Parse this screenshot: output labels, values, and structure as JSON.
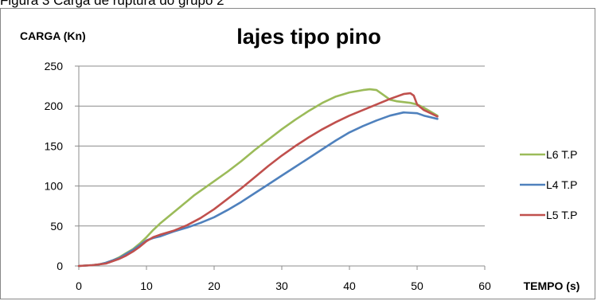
{
  "caption": "Figura 3 Carga de ruptura do grupo 2",
  "chart_data": {
    "type": "line",
    "title": "lajes tipo pino",
    "ylabel": "CARGA (Kn)",
    "xlabel": "TEMPO (s)",
    "xlim": [
      0,
      60
    ],
    "ylim": [
      0,
      250
    ],
    "xticks": [
      0,
      10,
      20,
      30,
      40,
      50,
      60
    ],
    "yticks": [
      0,
      50,
      100,
      150,
      200,
      250
    ],
    "grid": "horizontal",
    "legend_position": "right",
    "series": [
      {
        "name": "L6 T.P",
        "color": "#9bbb59",
        "x": [
          0,
          2,
          3,
          4,
          5,
          6,
          7,
          8,
          9,
          10,
          11,
          12,
          13,
          14,
          15,
          16,
          17,
          18,
          19,
          20,
          22,
          24,
          26,
          28,
          30,
          32,
          34,
          36,
          38,
          40,
          42,
          43,
          44,
          45,
          46,
          47,
          48,
          49,
          50,
          51,
          52,
          53
        ],
        "y": [
          0,
          1,
          2,
          4,
          7,
          11,
          16,
          21,
          28,
          36,
          45,
          53,
          60,
          67,
          74,
          81,
          88,
          94,
          100,
          106,
          118,
          131,
          145,
          158,
          171,
          183,
          194,
          204,
          212,
          217,
          220,
          221,
          220,
          214,
          208,
          206,
          205,
          204,
          202,
          198,
          193,
          188
        ]
      },
      {
        "name": "L4 T.P",
        "color": "#4f81bd",
        "x": [
          0,
          2,
          3,
          4,
          5,
          6,
          7,
          8,
          9,
          10,
          11,
          12,
          13,
          14,
          16,
          18,
          20,
          22,
          24,
          26,
          28,
          30,
          32,
          34,
          36,
          38,
          40,
          42,
          44,
          46,
          48,
          50,
          51,
          52,
          53
        ],
        "y": [
          0,
          1,
          2,
          4,
          7,
          10,
          15,
          20,
          26,
          32,
          35,
          37,
          40,
          43,
          48,
          54,
          61,
          70,
          80,
          91,
          102,
          113,
          124,
          135,
          146,
          157,
          167,
          175,
          182,
          188,
          192,
          191,
          188,
          186,
          184
        ]
      },
      {
        "name": "L5 T.P",
        "color": "#c0504d",
        "x": [
          0,
          2,
          3,
          4,
          5,
          6,
          7,
          8,
          9,
          10,
          11,
          12,
          14,
          16,
          18,
          20,
          22,
          24,
          26,
          28,
          30,
          32,
          34,
          36,
          38,
          40,
          42,
          44,
          46,
          48,
          49,
          49.5,
          50,
          51,
          52,
          53
        ],
        "y": [
          0,
          1,
          2,
          3,
          6,
          9,
          13,
          18,
          24,
          31,
          36,
          39,
          44,
          51,
          60,
          71,
          84,
          97,
          111,
          125,
          138,
          150,
          161,
          171,
          180,
          188,
          195,
          202,
          209,
          215,
          216,
          213,
          202,
          195,
          191,
          187
        ]
      }
    ]
  }
}
